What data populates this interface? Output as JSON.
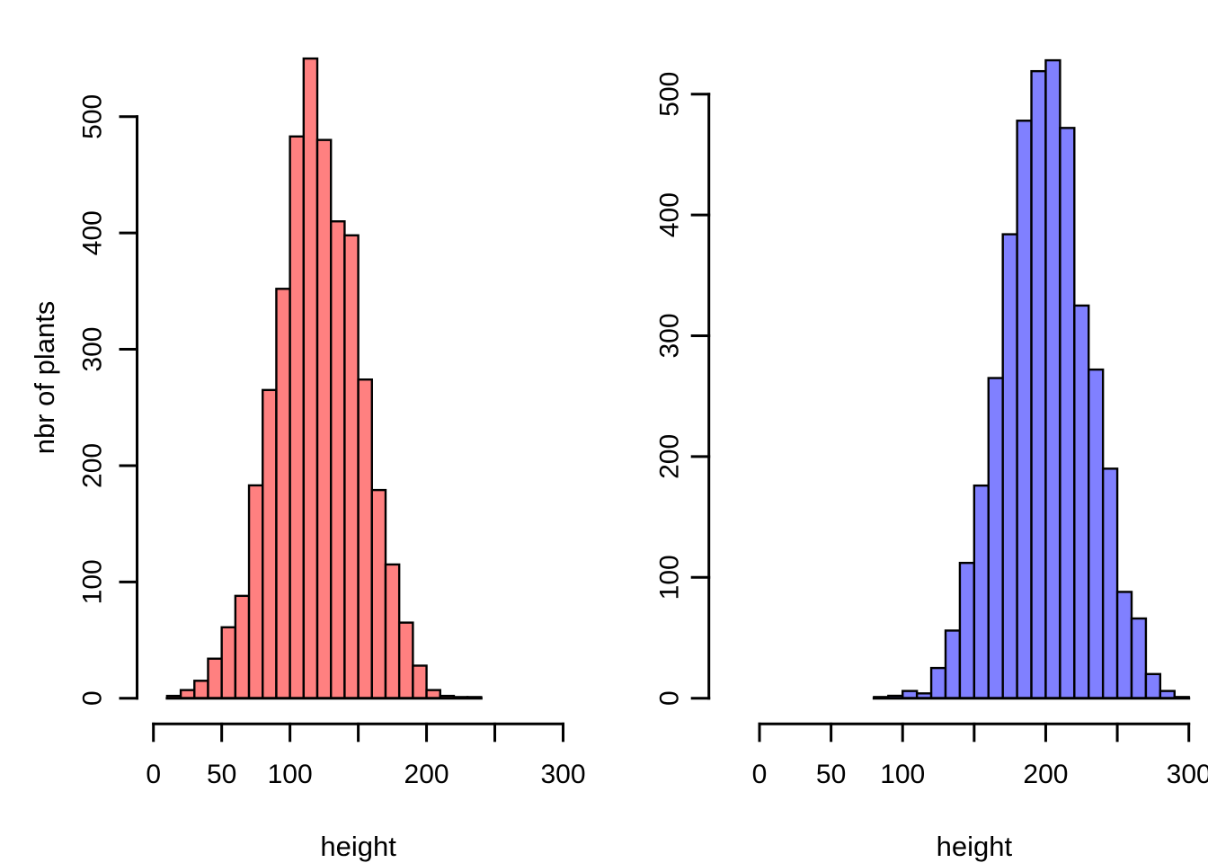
{
  "figure": {
    "background": "#ffffff",
    "description": "Two side-by-side R-style histograms of plant heights"
  },
  "chart_data": [
    {
      "type": "bar",
      "name": "left-histogram",
      "title": "",
      "xlabel": "height",
      "ylabel": "nbr of plants",
      "bar_color": "#FF8080",
      "bar_border_color": "#000000",
      "bin_width": 10,
      "bin_starts": [
        10,
        20,
        30,
        40,
        50,
        60,
        70,
        80,
        90,
        100,
        110,
        120,
        130,
        140,
        150,
        160,
        170,
        180,
        190,
        200,
        210,
        220,
        230
      ],
      "counts": [
        2,
        7,
        15,
        34,
        61,
        88,
        183,
        265,
        352,
        483,
        550,
        480,
        410,
        398,
        274,
        179,
        115,
        65,
        28,
        7,
        2,
        1,
        1
      ],
      "x_axis": {
        "range": [
          0,
          300
        ],
        "ticks": [
          0,
          50,
          100,
          150,
          200,
          250,
          300
        ],
        "tick_labels": [
          "0",
          "50",
          "100",
          "",
          "200",
          "",
          "300"
        ]
      },
      "y_axis": {
        "range": [
          0,
          550
        ],
        "ticks": [
          0,
          100,
          200,
          300,
          400,
          500
        ],
        "tick_labels": [
          "0",
          "100",
          "200",
          "300",
          "400",
          "500"
        ]
      },
      "grid": false,
      "legend": false
    },
    {
      "type": "bar",
      "name": "right-histogram",
      "title": "",
      "xlabel": "height",
      "ylabel": "",
      "bar_color": "#8080FF",
      "bar_border_color": "#000000",
      "bin_width": 10,
      "bin_starts": [
        80,
        90,
        100,
        110,
        120,
        130,
        140,
        150,
        160,
        170,
        180,
        190,
        200,
        210,
        220,
        230,
        240,
        250,
        260,
        270,
        280,
        290
      ],
      "counts": [
        1,
        2,
        6,
        4,
        25,
        56,
        112,
        176,
        265,
        384,
        478,
        519,
        528,
        472,
        325,
        272,
        190,
        88,
        66,
        20,
        6,
        1
      ],
      "x_axis": {
        "range": [
          0,
          300
        ],
        "ticks": [
          0,
          50,
          100,
          150,
          200,
          250,
          300
        ],
        "tick_labels": [
          "0",
          "50",
          "100",
          "",
          "200",
          "",
          "300"
        ]
      },
      "y_axis": {
        "range": [
          0,
          528
        ],
        "ticks": [
          0,
          100,
          200,
          300,
          400,
          500
        ],
        "tick_labels": [
          "0",
          "100",
          "200",
          "300",
          "400",
          "500"
        ]
      },
      "grid": false,
      "legend": false
    }
  ]
}
